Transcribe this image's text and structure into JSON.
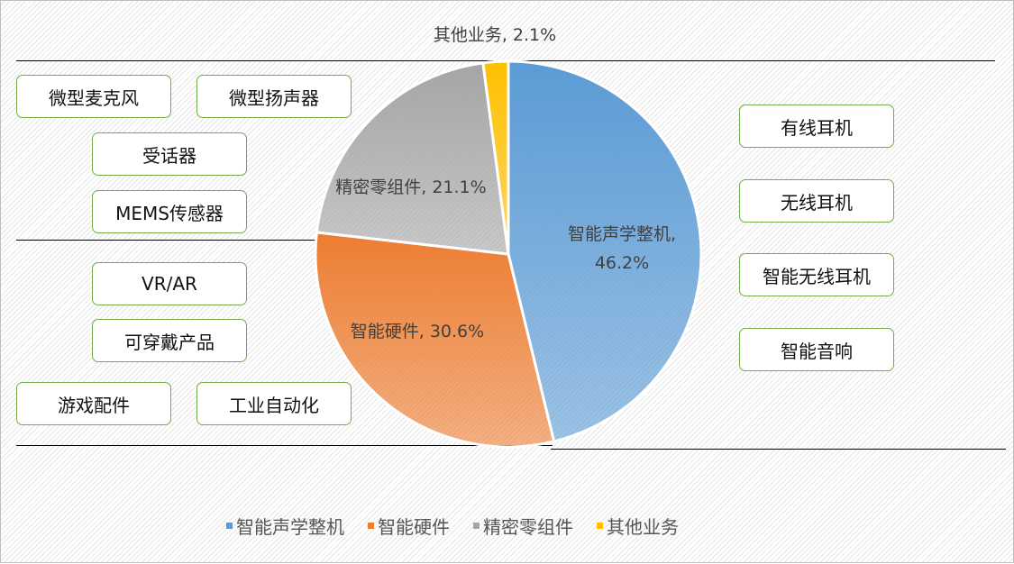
{
  "chart_data": {
    "type": "pie",
    "categories": [
      "智能声学整机",
      "智能硬件",
      "精密零组件",
      "其他业务"
    ],
    "values": [
      46.2,
      30.6,
      21.1,
      2.1
    ],
    "data_labels": [
      "智能声学整机, 46.2%",
      "智能硬件, 30.6%",
      "精密零组件, 21.1%",
      "其他业务, 2.1%"
    ],
    "colors": [
      "#5b9bd5",
      "#ed7d31",
      "#a5a5a5",
      "#ffc000"
    ],
    "legend_position": "bottom"
  },
  "left_boxes": [
    "微型麦克风",
    "微型扬声器",
    "受话器",
    "MEMS传感器",
    "VR/AR",
    "可穿戴产品",
    "游戏配件",
    "工业自动化"
  ],
  "right_boxes": [
    "有线耳机",
    "无线耳机",
    "智能无线耳机",
    "智能音响"
  ]
}
